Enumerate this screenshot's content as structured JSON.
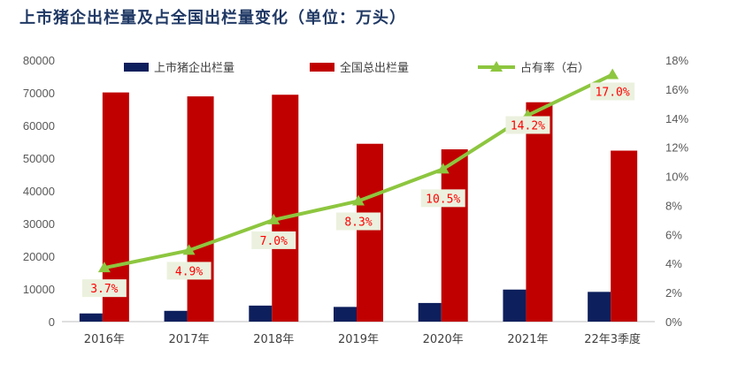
{
  "title": "上市猪企出栏量及占全国出栏量变化（单位：万头）",
  "colors": {
    "listed": "#0d1f5c",
    "national": "#c00000",
    "share": "#8dc63f",
    "label_bg": "#ebf1de",
    "label_text": "#ff0000",
    "axis": "#bfbfbf",
    "title": "#1f3864"
  },
  "chart_data": {
    "type": "bar",
    "title": "上市猪企出栏量及占全国出栏量变化（单位：万头）",
    "categories": [
      "2016年",
      "2017年",
      "2018年",
      "2019年",
      "2020年",
      "2021年",
      "22年3季度"
    ],
    "series": [
      {
        "name": "上市猪企出栏量",
        "type": "bar",
        "axis": "left",
        "values": [
          2500,
          3300,
          4900,
          4500,
          5700,
          9800,
          9100
        ]
      },
      {
        "name": "全国总出栏量",
        "type": "bar",
        "axis": "left",
        "values": [
          70100,
          68900,
          69400,
          54400,
          52700,
          67100,
          52300
        ]
      },
      {
        "name": "占有率（右）",
        "type": "line",
        "axis": "right",
        "values": [
          3.7,
          4.9,
          7.0,
          8.3,
          10.5,
          14.2,
          17.0
        ],
        "unit": "%"
      }
    ],
    "data_labels": [
      "3.7%",
      "4.9%",
      "7.0%",
      "8.3%",
      "10.5%",
      "14.2%",
      "17.0%"
    ],
    "ylim": [
      0,
      80000
    ],
    "yticks": [
      "0",
      "10000",
      "20000",
      "30000",
      "40000",
      "50000",
      "60000",
      "70000",
      "80000"
    ],
    "y2lim": [
      0,
      18
    ],
    "y2ticks": [
      "0%",
      "2%",
      "4%",
      "6%",
      "8%",
      "10%",
      "12%",
      "14%",
      "16%",
      "18%"
    ],
    "legend_position": "top",
    "grid": false
  }
}
